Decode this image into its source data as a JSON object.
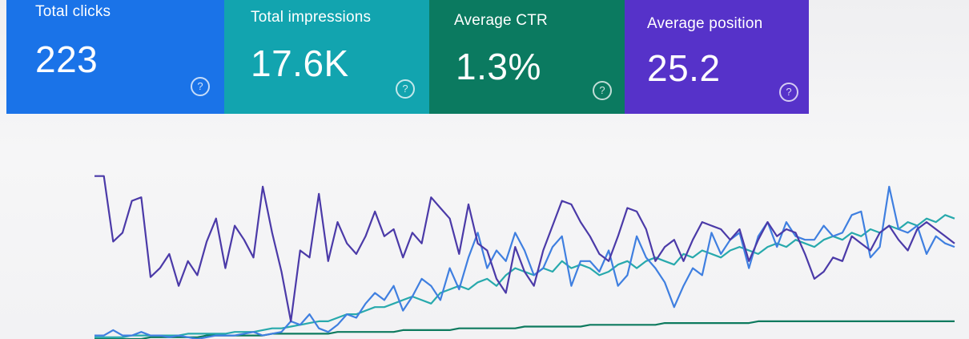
{
  "metrics": {
    "clicks": {
      "label": "Total clicks",
      "value": "223",
      "help": "?"
    },
    "impressions": {
      "label": "Total impressions",
      "value": "17.6K",
      "help": "?"
    },
    "ctr": {
      "label": "Average CTR",
      "value": "1.3%",
      "help": "?"
    },
    "position": {
      "label": "Average position",
      "value": "25.2",
      "help": "?"
    }
  },
  "colors": {
    "clicks": "#1a73e8",
    "impressions": "#12a4af",
    "ctr": "#0b7a60",
    "position": "#5632c9"
  },
  "chart_data": {
    "type": "line",
    "title": "",
    "xlabel": "",
    "ylabel": "",
    "grid": false,
    "legend": "none",
    "ylim": [
      0,
      100
    ],
    "series": [
      {
        "color": "#4b3aa8",
        "values": [
          92,
          92,
          55,
          60,
          78,
          80,
          35,
          40,
          48,
          30,
          44,
          36,
          55,
          68,
          40,
          64,
          56,
          46,
          86,
          60,
          38,
          10,
          50,
          46,
          82,
          44,
          66,
          54,
          48,
          58,
          72,
          58,
          62,
          46,
          60,
          54,
          80,
          74,
          68,
          48,
          76,
          54,
          50,
          34,
          26,
          52,
          38,
          30,
          50,
          64,
          78,
          76,
          66,
          58,
          48,
          44,
          58,
          74,
          72,
          62,
          44,
          52,
          56,
          44,
          56,
          66,
          64,
          62,
          56,
          62,
          44,
          56,
          66,
          58,
          62,
          60,
          48,
          34,
          38,
          46,
          44,
          58,
          54,
          50,
          60,
          64,
          56,
          50,
          62,
          66,
          62,
          58,
          54
        ]
      },
      {
        "color": "#3f7fe0",
        "values": [
          2,
          2,
          5,
          2,
          2,
          4,
          2,
          2,
          1,
          2,
          1,
          0,
          1,
          2,
          2,
          2,
          3,
          4,
          2,
          3,
          4,
          10,
          8,
          14,
          6,
          4,
          8,
          14,
          12,
          20,
          26,
          22,
          30,
          16,
          24,
          34,
          30,
          22,
          40,
          28,
          46,
          60,
          40,
          50,
          44,
          60,
          50,
          36,
          40,
          52,
          58,
          30,
          44,
          44,
          38,
          50,
          30,
          36,
          58,
          46,
          40,
          32,
          18,
          30,
          40,
          36,
          60,
          48,
          56,
          60,
          40,
          58,
          66,
          52,
          66,
          58,
          56,
          56,
          64,
          58,
          60,
          70,
          72,
          46,
          52,
          86,
          62,
          60,
          64,
          48,
          58,
          54,
          52
        ]
      },
      {
        "color": "#27a9ac",
        "values": [
          1,
          1,
          1,
          1,
          2,
          2,
          2,
          2,
          2,
          2,
          3,
          3,
          3,
          3,
          3,
          4,
          4,
          4,
          5,
          6,
          6,
          7,
          8,
          9,
          10,
          10,
          12,
          14,
          14,
          16,
          18,
          18,
          20,
          22,
          24,
          22,
          20,
          26,
          28,
          30,
          28,
          32,
          34,
          30,
          36,
          40,
          38,
          36,
          40,
          38,
          44,
          40,
          42,
          40,
          36,
          38,
          42,
          44,
          40,
          44,
          46,
          44,
          42,
          48,
          46,
          50,
          48,
          46,
          50,
          52,
          50,
          48,
          52,
          54,
          52,
          56,
          54,
          52,
          56,
          58,
          56,
          60,
          58,
          62,
          60,
          64,
          62,
          66,
          64,
          68,
          66,
          70,
          68
        ]
      },
      {
        "color": "#0d7a5e",
        "values": [
          0,
          0,
          0,
          0,
          0,
          0,
          1,
          1,
          1,
          1,
          1,
          1,
          2,
          2,
          2,
          2,
          2,
          2,
          2,
          3,
          3,
          3,
          3,
          3,
          3,
          3,
          4,
          4,
          4,
          4,
          4,
          4,
          4,
          5,
          5,
          5,
          5,
          5,
          5,
          6,
          6,
          6,
          6,
          6,
          6,
          6,
          7,
          7,
          7,
          7,
          7,
          7,
          7,
          8,
          8,
          8,
          8,
          8,
          8,
          8,
          8,
          9,
          9,
          9,
          9,
          9,
          9,
          9,
          9,
          9,
          9,
          10,
          10,
          10,
          10,
          10,
          10,
          10,
          10,
          10,
          10,
          10,
          10,
          10,
          10,
          10,
          10,
          10,
          10,
          10,
          10,
          10,
          10
        ]
      }
    ]
  }
}
